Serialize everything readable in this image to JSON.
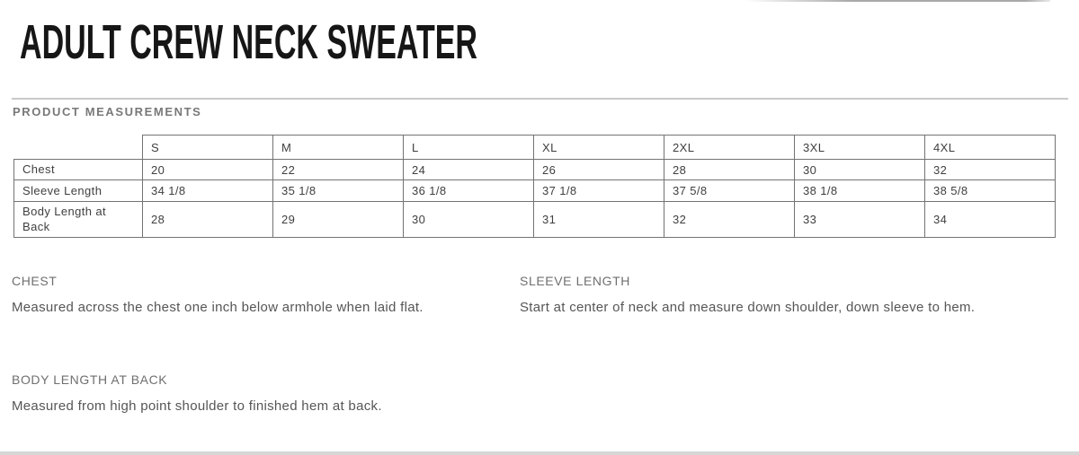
{
  "page": {
    "title": "ADULT CREW NECK SWEATER",
    "section_heading": "PRODUCT MEASUREMENTS"
  },
  "measurements_table": {
    "columns": [
      "S",
      "M",
      "L",
      "XL",
      "2XL",
      "3XL",
      "4XL"
    ],
    "rows": [
      {
        "label": "Chest",
        "values": [
          "20",
          "22",
          "24",
          "26",
          "28",
          "30",
          "32"
        ]
      },
      {
        "label": "Sleeve Length",
        "values": [
          "34 1/8",
          "35 1/8",
          "36 1/8",
          "37 1/8",
          "37 5/8",
          "38 1/8",
          "38 5/8"
        ]
      },
      {
        "label": "Body Length at Back",
        "values": [
          "28",
          "29",
          "30",
          "31",
          "32",
          "33",
          "34"
        ]
      }
    ]
  },
  "definitions": [
    {
      "heading": "CHEST",
      "text": "Measured across the chest one inch below armhole when laid flat."
    },
    {
      "heading": "SLEEVE LENGTH",
      "text": "Start at center of neck and measure down shoulder, down sleeve to hem."
    },
    {
      "heading": "BODY LENGTH AT BACK",
      "text": "Measured from high point shoulder to finished hem at back."
    }
  ],
  "colors": {
    "title_text": "#161616",
    "section_heading_text": "#787878",
    "table_text": "#3f3f3f",
    "table_border": "#737373",
    "definition_text": "#565656",
    "bottom_bar": "#d7d7d7"
  }
}
